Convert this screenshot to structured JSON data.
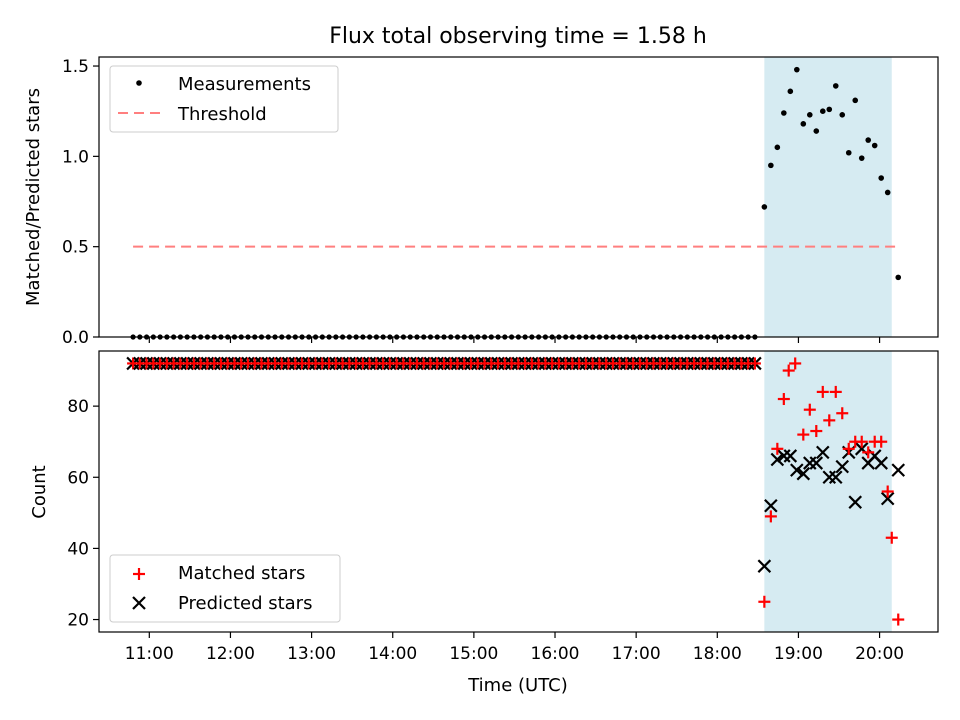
{
  "figure": {
    "title": "Flux total observing time = 1.58 h"
  },
  "chart_data": [
    {
      "type": "scatter",
      "panel": "top",
      "ylabel": "Matched/Predicted stars",
      "xlabel": "",
      "x_unit": "hours (UTC)",
      "xlim": [
        10.38,
        20.72
      ],
      "ylim": [
        0.0,
        1.55
      ],
      "yticks": [
        0.0,
        0.5,
        1.0,
        1.5
      ],
      "ytick_labels": [
        "0.0",
        "0.5",
        "1.0",
        "1.5"
      ],
      "legend_position": "upper left",
      "legend": [
        "Measurements",
        "Threshold"
      ],
      "shaded_region": {
        "x0": 18.58,
        "x1": 20.15,
        "color": "#add8e6"
      },
      "threshold": {
        "x0": 10.8,
        "x1": 20.2,
        "y": 0.5,
        "color": "#ff7f7f",
        "style": "dashed"
      },
      "zero_run": {
        "x_start": 10.8,
        "x_end": 18.5,
        "step": 0.0833,
        "y": 0.0
      },
      "series": [
        {
          "name": "Measurements",
          "marker": "dot",
          "color": "#000000",
          "x": [
            18.58,
            18.66,
            18.74,
            18.82,
            18.9,
            18.98,
            19.06,
            19.14,
            19.22,
            19.3,
            19.38,
            19.46,
            19.54,
            19.62,
            19.7,
            19.78,
            19.86,
            19.94,
            20.02,
            20.1,
            20.23
          ],
          "y": [
            0.72,
            0.95,
            1.05,
            1.24,
            1.36,
            1.48,
            1.18,
            1.23,
            1.14,
            1.25,
            1.26,
            1.39,
            1.23,
            1.02,
            1.31,
            0.99,
            1.09,
            1.06,
            0.88,
            0.8,
            0.33
          ]
        }
      ]
    },
    {
      "type": "scatter",
      "panel": "bottom",
      "ylabel": "Count",
      "xlabel": "Time (UTC)",
      "x_unit": "hours (UTC)",
      "xlim": [
        10.38,
        20.72
      ],
      "ylim": [
        16.5,
        95.5
      ],
      "yticks": [
        20,
        40,
        60,
        80
      ],
      "ytick_labels": [
        "20",
        "40",
        "60",
        "80"
      ],
      "xticks": [
        11,
        12,
        13,
        14,
        15,
        16,
        17,
        18,
        19,
        20
      ],
      "xtick_labels": [
        "11:00",
        "12:00",
        "13:00",
        "14:00",
        "15:00",
        "16:00",
        "17:00",
        "18:00",
        "19:00",
        "20:00"
      ],
      "legend_position": "lower left",
      "legend": [
        "Matched stars",
        "Predicted stars"
      ],
      "shaded_region": {
        "x0": 18.58,
        "x1": 20.15,
        "color": "#add8e6"
      },
      "constant_run": {
        "x_start": 10.8,
        "x_end": 18.5,
        "step": 0.0833,
        "y": 92
      },
      "series": [
        {
          "name": "Matched stars",
          "marker": "plus",
          "color": "#ff0000",
          "x": [
            18.58,
            18.66,
            18.74,
            18.82,
            18.88,
            18.96,
            19.06,
            19.14,
            19.22,
            19.3,
            19.38,
            19.46,
            19.54,
            19.62,
            19.7,
            19.78,
            19.86,
            19.94,
            20.02,
            20.1,
            20.15,
            20.23
          ],
          "y": [
            25,
            49,
            68,
            82,
            90,
            92,
            72,
            79,
            73,
            84,
            76,
            84,
            78,
            68,
            70,
            70,
            67,
            70,
            70,
            56,
            43,
            20
          ]
        },
        {
          "name": "Predicted stars",
          "marker": "x",
          "color": "#000000",
          "x": [
            18.58,
            18.66,
            18.74,
            18.82,
            18.9,
            18.98,
            19.06,
            19.14,
            19.22,
            19.3,
            19.38,
            19.46,
            19.54,
            19.62,
            19.7,
            19.78,
            19.86,
            19.94,
            20.02,
            20.1,
            20.23
          ],
          "y": [
            35,
            52,
            65,
            66,
            66,
            62,
            61,
            64,
            64,
            67,
            60,
            60,
            63,
            67,
            53,
            68,
            64,
            66,
            64,
            54,
            62
          ]
        }
      ]
    }
  ]
}
